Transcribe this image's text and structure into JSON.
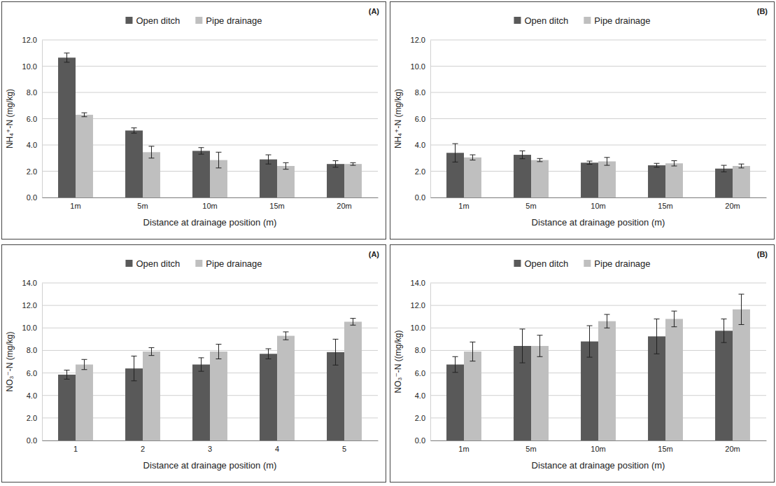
{
  "chart_data": [
    {
      "type": "bar",
      "y_label": "NH₄⁺-N (mg/kg)",
      "x_label": "Distance at drainage position (m)",
      "annotations": [
        "(A)"
      ],
      "categories": [
        "1m",
        "5m",
        "10m",
        "15m",
        "20m"
      ],
      "series": [
        {
          "name": "Open ditch",
          "color": "#595959",
          "values": [
            10.65,
            5.1,
            3.55,
            2.9,
            2.55
          ],
          "errors": [
            0.35,
            0.2,
            0.25,
            0.35,
            0.25
          ]
        },
        {
          "name": "Pipe drainage",
          "color": "#bfbfbf",
          "values": [
            6.3,
            3.45,
            2.85,
            2.4,
            2.55
          ],
          "errors": [
            0.15,
            0.45,
            0.6,
            0.25,
            0.1
          ]
        }
      ],
      "ylim": [
        0,
        12
      ],
      "yticks": [
        {
          "value": 0,
          "label": "0.0"
        },
        {
          "value": 2,
          "label": "2.0"
        },
        {
          "value": 4,
          "label": "4.0"
        },
        {
          "value": 6,
          "label": "6.0"
        },
        {
          "value": 8,
          "label": "8.0"
        },
        {
          "value": 10,
          "label": "10.0"
        },
        {
          "value": 12,
          "label": "12.0"
        }
      ],
      "grid": true,
      "legend": "top"
    },
    {
      "type": "bar",
      "y_label": "NH₄⁺-N (mg/kg)",
      "x_label": "Distance at drainage position (m)",
      "annotations": [
        "(B)"
      ],
      "categories": [
        "1m",
        "5m",
        "10m",
        "15m",
        "20m"
      ],
      "series": [
        {
          "name": "Open ditch",
          "color": "#595959",
          "values": [
            3.4,
            3.25,
            2.65,
            2.45,
            2.2
          ],
          "errors": [
            0.7,
            0.3,
            0.12,
            0.15,
            0.25
          ]
        },
        {
          "name": "Pipe drainage",
          "color": "#bfbfbf",
          "values": [
            3.05,
            2.85,
            2.75,
            2.6,
            2.4
          ],
          "errors": [
            0.2,
            0.12,
            0.3,
            0.2,
            0.15
          ]
        }
      ],
      "ylim": [
        0,
        12
      ],
      "yticks": [
        {
          "value": 0,
          "label": "0.0"
        },
        {
          "value": 2,
          "label": "2.0"
        },
        {
          "value": 4,
          "label": "4.0"
        },
        {
          "value": 6,
          "label": "6.0"
        },
        {
          "value": 8,
          "label": "8.0"
        },
        {
          "value": 10,
          "label": "10.0"
        },
        {
          "value": 12,
          "label": "12.0"
        }
      ],
      "grid": true,
      "legend": "top"
    },
    {
      "type": "bar",
      "y_label": "NO₃⁻-N (mg/kg)",
      "x_label": "Distance at drainage position (m)",
      "annotations": [
        "(A)"
      ],
      "categories": [
        "1",
        "2",
        "3",
        "4",
        "5"
      ],
      "series": [
        {
          "name": "Open ditch",
          "color": "#595959",
          "values": [
            5.85,
            6.4,
            6.75,
            7.7,
            7.85
          ],
          "errors": [
            0.4,
            1.1,
            0.6,
            0.45,
            1.15
          ]
        },
        {
          "name": "Pipe drainage",
          "color": "#bfbfbf",
          "values": [
            6.75,
            7.9,
            7.9,
            9.3,
            10.55
          ],
          "errors": [
            0.45,
            0.35,
            0.65,
            0.35,
            0.3
          ]
        }
      ],
      "ylim": [
        0,
        14
      ],
      "yticks": [
        {
          "value": 0,
          "label": "0.0"
        },
        {
          "value": 2,
          "label": "2.0"
        },
        {
          "value": 4,
          "label": "4.0"
        },
        {
          "value": 6,
          "label": "6.0"
        },
        {
          "value": 8,
          "label": "8.0"
        },
        {
          "value": 10,
          "label": "10.0"
        },
        {
          "value": 12,
          "label": "12.0"
        },
        {
          "value": 14,
          "label": "14.0"
        }
      ],
      "grid": true,
      "legend": "top"
    },
    {
      "type": "bar",
      "y_label": "NO₃⁻-N ((mg/kg)",
      "x_label": "Distance at drainage position (m)",
      "annotations": [
        "(B)"
      ],
      "categories": [
        "1m",
        "5m",
        "10m",
        "15m",
        "20m"
      ],
      "series": [
        {
          "name": "Open ditch",
          "color": "#595959",
          "values": [
            6.75,
            8.4,
            8.8,
            9.25,
            9.75
          ],
          "errors": [
            0.7,
            1.5,
            1.4,
            1.55,
            1.05
          ]
        },
        {
          "name": "Pipe drainage",
          "color": "#bfbfbf",
          "values": [
            7.9,
            8.4,
            10.6,
            10.8,
            11.65
          ],
          "errors": [
            0.85,
            0.95,
            0.6,
            0.7,
            1.35
          ]
        }
      ],
      "ylim": [
        0,
        14
      ],
      "yticks": [
        {
          "value": 0,
          "label": "0.0"
        },
        {
          "value": 2,
          "label": "2.0"
        },
        {
          "value": 4,
          "label": "4.0"
        },
        {
          "value": 6,
          "label": "6.0"
        },
        {
          "value": 8,
          "label": "8.0"
        },
        {
          "value": 10,
          "label": "10.0"
        },
        {
          "value": 12,
          "label": "12.0"
        },
        {
          "value": 14,
          "label": "14.0"
        }
      ],
      "grid": true,
      "legend": "top"
    }
  ]
}
